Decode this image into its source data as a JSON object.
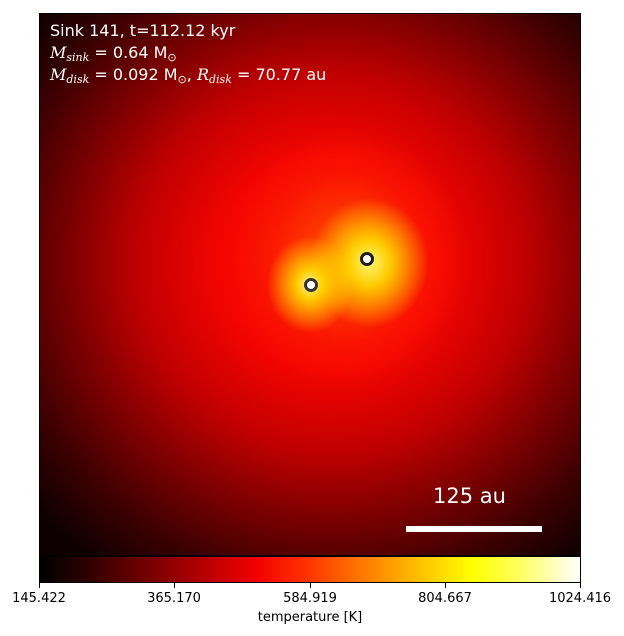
{
  "info": {
    "line1": "Sink 141, t=112.12 kyr",
    "m_sink_symbol": "M",
    "m_sink_sub": "sink",
    "m_sink_value": " = 0.64 M",
    "m_sink_unit_sub": "⊙",
    "m_disk_symbol": "M",
    "m_disk_sub": "disk",
    "m_disk_value": " = 0.092 M",
    "m_disk_unit_sub": "⊙",
    "r_disk_sep": ", ",
    "r_disk_symbol": "R",
    "r_disk_sub": "disk",
    "r_disk_value": " = 70.77 au"
  },
  "scalebar": {
    "label": "125 au"
  },
  "colorbar": {
    "label": "temperature [K]",
    "ticks": [
      "145.422",
      "365.170",
      "584.919",
      "804.667",
      "1024.416"
    ],
    "min": 145.422,
    "max": 1024.416,
    "colormap": "hot"
  },
  "colors": {
    "marker_border": "#2a2a2a",
    "text_light": "#ffffff"
  }
}
